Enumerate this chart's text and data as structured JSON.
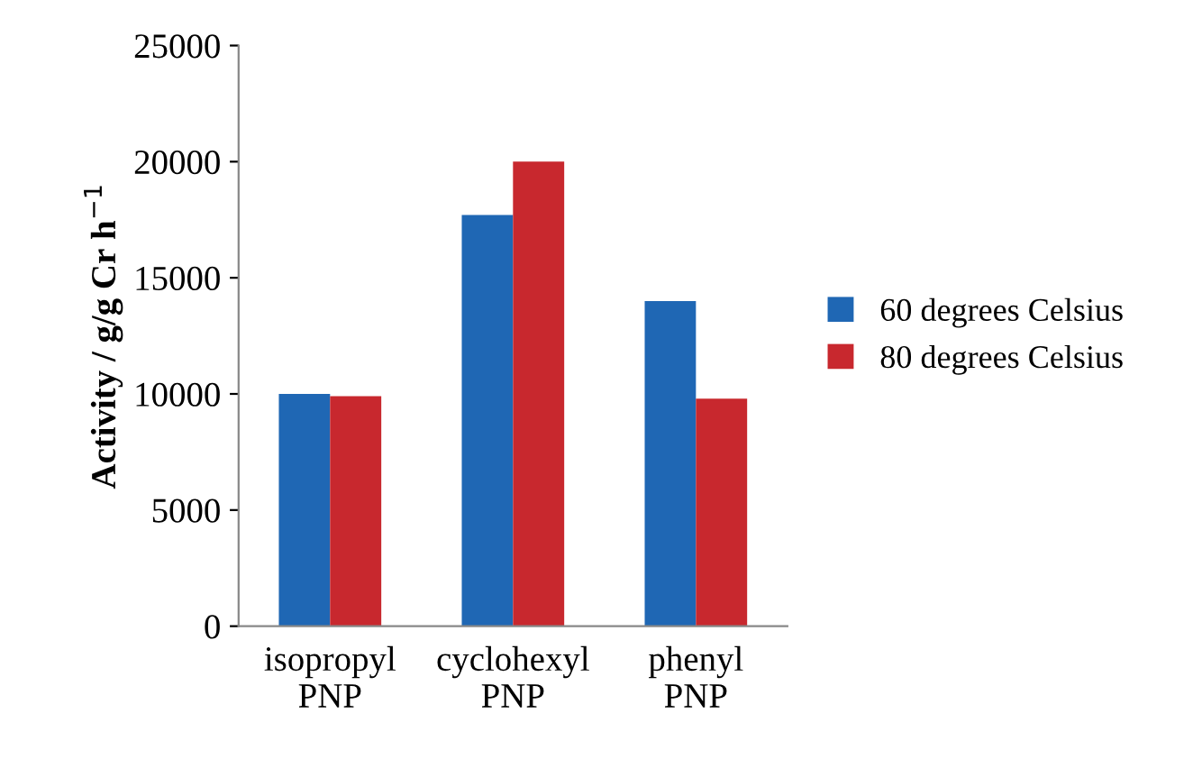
{
  "chart_data": {
    "type": "bar",
    "ylabel": "Activity / g/g Cr h$^{−1}$",
    "categories": [
      "isopropyl\nPNP",
      "cyclohexyl\nPNP",
      "phenyl\nPNP"
    ],
    "series": [
      {
        "name": "60 degrees Celsius",
        "color": "#1f67b4",
        "values": [
          10000,
          17700,
          14000
        ]
      },
      {
        "name": "80 degrees Celsius",
        "color": "#c8282e",
        "values": [
          9900,
          20000,
          9800
        ]
      }
    ],
    "ylim": [
      0,
      25000
    ],
    "yticks": [
      0,
      5000,
      10000,
      15000,
      20000,
      25000
    ],
    "grid": false,
    "legend": "right"
  }
}
